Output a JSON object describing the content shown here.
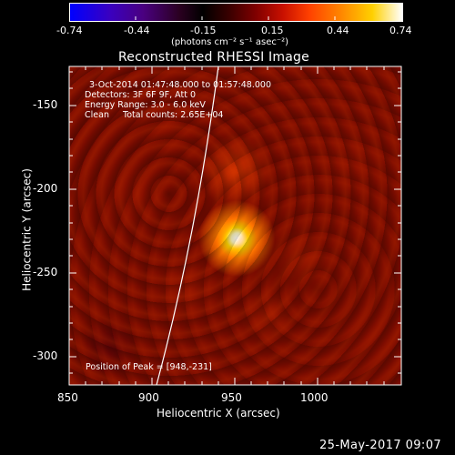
{
  "colorbar": {
    "tick_labels": [
      "-0.74",
      "-0.44",
      "-0.15",
      "0.15",
      "0.44",
      "0.74"
    ],
    "units_label": "(photons cm⁻² s⁻¹ asec⁻²)",
    "range": [
      -0.74,
      0.74
    ]
  },
  "plot": {
    "title": "Reconstructed RHESSI Image",
    "x_axis_label": "Heliocentric X (arcsec)",
    "y_axis_label": "Heliocentric Y (arcsec)",
    "x_ticks": [
      "850",
      "900",
      "950",
      "1000"
    ],
    "y_ticks": [
      "-150",
      "-200",
      "-250",
      "-300"
    ],
    "x_range": [
      850,
      1040
    ],
    "y_range": [
      -320,
      -130
    ],
    "info_lines": [
      "3-Oct-2014 01:47:48.000 to 01:57:48.000",
      "Detectors: 3F 6F 9F, Att 0",
      "Energy Range: 3.0 - 6.0 keV",
      "Clean     Total counts: 2.65E+04"
    ],
    "peak_label": "Position of Peak = [948,-231]",
    "peak_position": [
      948,
      -231
    ],
    "colors": {
      "limb": "#ffffff",
      "axes": "#ffffff"
    }
  },
  "footer": {
    "date": "25-May-2017 09:07"
  }
}
